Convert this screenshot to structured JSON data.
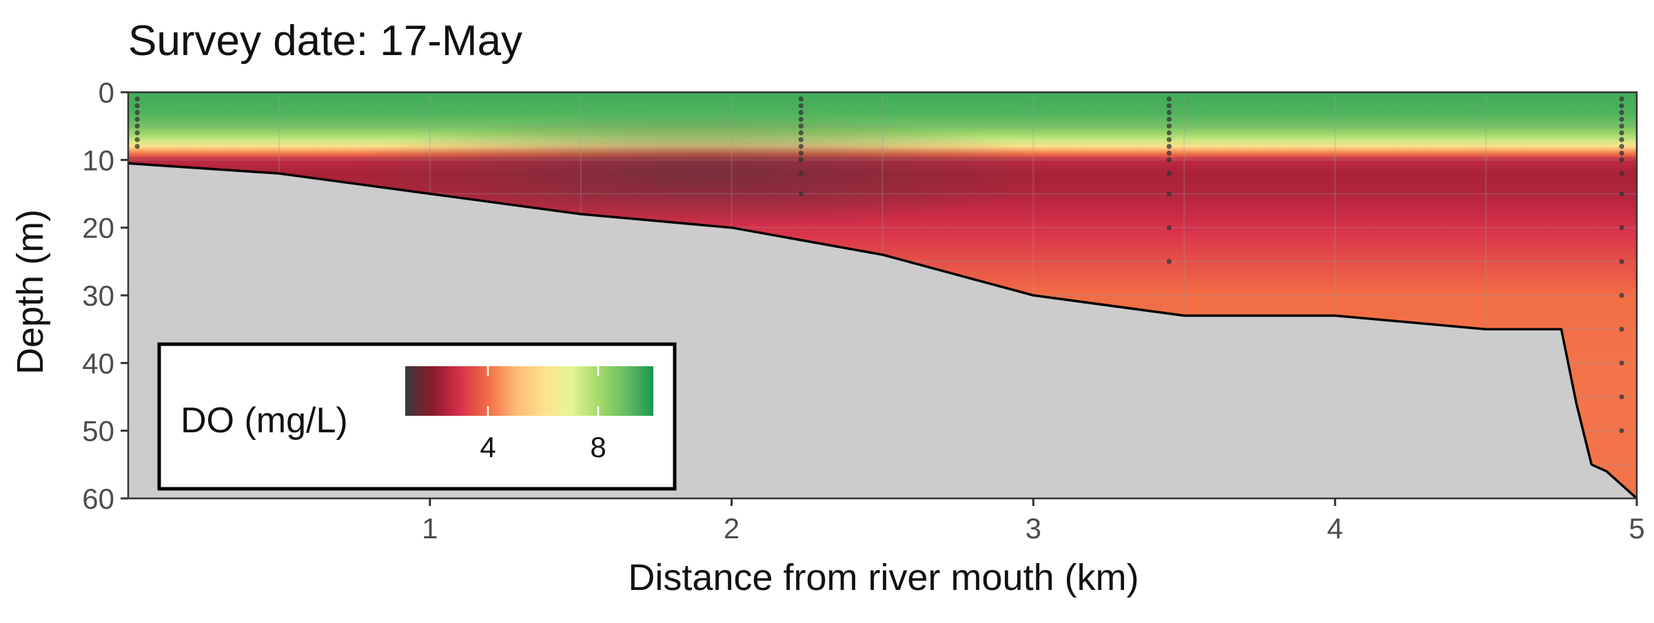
{
  "chart_data": {
    "type": "heatmap",
    "title": "Survey date: 17-May",
    "xlabel": "Distance from river mouth (km)",
    "ylabel": "Depth (m)",
    "xlim": [
      0,
      5
    ],
    "ylim": [
      60,
      0
    ],
    "x_ticks": [
      1,
      2,
      3,
      4,
      5
    ],
    "y_ticks": [
      0,
      10,
      20,
      30,
      40,
      50,
      60
    ],
    "grid": true,
    "variable": "DO (mg/L)",
    "colorbar": {
      "title": "DO (mg/L)",
      "ticks": [
        4,
        8
      ],
      "range": [
        1,
        10
      ],
      "placement": "bottom-left",
      "colors": [
        "#3a3a3a",
        "#8b1a2b",
        "#d7304a",
        "#f26d45",
        "#fdb877",
        "#fee08b",
        "#e6f598",
        "#a6d96a",
        "#66bd63",
        "#1a9850"
      ]
    },
    "bathymetry": {
      "x": [
        0,
        0.5,
        1,
        1.5,
        2,
        2.5,
        3,
        3.5,
        4,
        4.5,
        4.75,
        4.8,
        4.85,
        4.9,
        5
      ],
      "depth": [
        10.5,
        12,
        15,
        18,
        20,
        24,
        30,
        33,
        33,
        35,
        35,
        46,
        55,
        56,
        60
      ]
    },
    "profile_stations": [
      {
        "x": 0.03,
        "depths": [
          1,
          2,
          3,
          4,
          5,
          6,
          7,
          8
        ]
      },
      {
        "x": 2.23,
        "depths": [
          1,
          2,
          3,
          4,
          5,
          6,
          7,
          8,
          9,
          10,
          12,
          15
        ]
      },
      {
        "x": 3.45,
        "depths": [
          1,
          2,
          3,
          4,
          5,
          6,
          7,
          8,
          9,
          10,
          12,
          15,
          20,
          25
        ]
      },
      {
        "x": 4.95,
        "depths": [
          1,
          2,
          3,
          4,
          5,
          6,
          7,
          8,
          9,
          10,
          12,
          15,
          20,
          25,
          30,
          35,
          40,
          45,
          50
        ]
      }
    ],
    "do_profile": {
      "depth": [
        0,
        3,
        5,
        6,
        7,
        8,
        9,
        10,
        12,
        15,
        20,
        25,
        30,
        40,
        60
      ],
      "values": [
        9.5,
        9.3,
        8.8,
        8.2,
        7.5,
        6.0,
        4.2,
        2.7,
        2.4,
        2.5,
        3.0,
        3.5,
        4.0,
        4.1,
        4.1
      ]
    }
  }
}
